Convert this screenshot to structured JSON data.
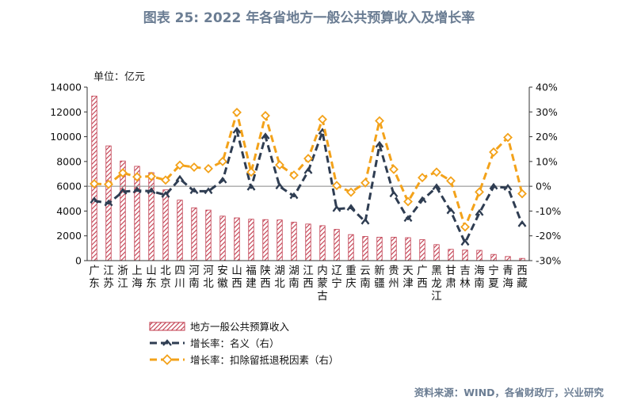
{
  "title": "图表 25: 2022 年各省地方一般公共预算收入及增长率",
  "unit": "单位：亿元",
  "source": "资料来源：WIND，各省财政厅，兴业研究",
  "colors": {
    "bar": "#c0394b",
    "nominal": "#2f3d52",
    "adjusted": "#f3a21a",
    "zero_line": "#888888"
  },
  "chart_data": {
    "type": "bar",
    "categories": [
      "广东",
      "江苏",
      "浙江",
      "上海",
      "山东",
      "北京",
      "四川",
      "河南",
      "河北",
      "安徽",
      "山西",
      "福建",
      "陕西",
      "湖北",
      "湖南",
      "江西",
      "内蒙古",
      "辽宁",
      "重庆",
      "云南",
      "新疆",
      "贵州",
      "天津",
      "广西",
      "黑龙江",
      "甘肃",
      "吉林",
      "海南",
      "宁夏",
      "青海",
      "西藏"
    ],
    "category_lines": [
      [
        "广",
        "东"
      ],
      [
        "江",
        "苏"
      ],
      [
        "浙",
        "江"
      ],
      [
        "上",
        "海"
      ],
      [
        "山",
        "东"
      ],
      [
        "北",
        "京"
      ],
      [
        "四",
        "川"
      ],
      [
        "河",
        "南"
      ],
      [
        "河",
        "北"
      ],
      [
        "安",
        "徽"
      ],
      [
        "山",
        "西"
      ],
      [
        "福",
        "建"
      ],
      [
        "陕",
        "西"
      ],
      [
        "湖",
        "北"
      ],
      [
        "湖",
        "南"
      ],
      [
        "江",
        "西"
      ],
      [
        "内",
        "蒙",
        "古"
      ],
      [
        "辽",
        "宁"
      ],
      [
        "重",
        "庆"
      ],
      [
        "云",
        "南"
      ],
      [
        "新",
        "疆"
      ],
      [
        "贵",
        "州"
      ],
      [
        "天",
        "津"
      ],
      [
        "广",
        "西"
      ],
      [
        "黑",
        "龙",
        "江"
      ],
      [
        "甘",
        "肃"
      ],
      [
        "吉",
        "林"
      ],
      [
        "海",
        "南"
      ],
      [
        "宁",
        "夏"
      ],
      [
        "青",
        "海"
      ],
      [
        "西",
        "藏"
      ]
    ],
    "series": [
      {
        "name": "地方一般公共预算收入",
        "type": "bar",
        "axis": "left",
        "values": [
          13280,
          9260,
          8040,
          7610,
          7100,
          5710,
          4880,
          4260,
          4080,
          3590,
          3450,
          3340,
          3310,
          3280,
          3100,
          2950,
          2820,
          2520,
          2100,
          1950,
          1890,
          1890,
          1850,
          1690,
          1290,
          910,
          850,
          830,
          500,
          330,
          180
        ]
      },
      {
        "name": "增长率：名义（右）",
        "type": "line",
        "axis": "right",
        "values": [
          -5.8,
          -6.9,
          -2.2,
          -1.7,
          -2.0,
          -3.5,
          3.0,
          -2.0,
          -2.0,
          2.3,
          22.4,
          -0.6,
          20.1,
          -0.1,
          -4.0,
          6.1,
          22.0,
          -9.2,
          -8.7,
          -14.3,
          16.7,
          -3.3,
          -13.2,
          -5.6,
          -0.4,
          -10.1,
          -22.8,
          -10.8,
          -0.2,
          -0.6,
          -15.3
        ]
      },
      {
        "name": "增长率：扣除留抵退税因素（右）",
        "type": "line",
        "axis": "right",
        "values": [
          1.0,
          0.8,
          5.4,
          3.8,
          4.0,
          2.5,
          8.5,
          7.7,
          7.1,
          10.0,
          29.8,
          5.7,
          28.5,
          8.6,
          4.5,
          11.2,
          27.0,
          0.3,
          -2.4,
          1.4,
          26.4,
          6.8,
          -6.2,
          3.5,
          5.7,
          2.2,
          -16.4,
          -2.3,
          13.8,
          19.7,
          -3.0
        ]
      }
    ],
    "y_left": {
      "min": 0,
      "max": 14000,
      "ticks": [
        0,
        2000,
        4000,
        6000,
        8000,
        10000,
        12000,
        14000
      ]
    },
    "y_right": {
      "min": -30,
      "max": 40,
      "ticks": [
        "-30%",
        "-20%",
        "-10%",
        "0%",
        "10%",
        "20%",
        "30%",
        "40%"
      ]
    },
    "legend_position": "bottom"
  }
}
